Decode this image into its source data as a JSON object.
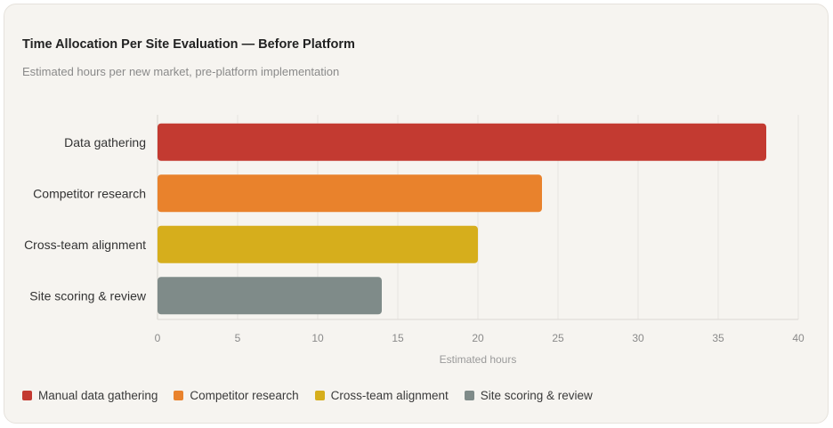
{
  "chart_data": {
    "type": "bar",
    "orientation": "horizontal",
    "title": "Time Allocation Per Site Evaluation — Before Platform",
    "subtitle": "Estimated hours per new market, pre-platform implementation",
    "categories": [
      "Data gathering",
      "Competitor research",
      "Cross-team alignment",
      "Site scoring & review"
    ],
    "values": [
      38,
      24,
      20,
      14
    ],
    "colors": [
      "#c33a31",
      "#e9822c",
      "#d6ae1c",
      "#7f8b89"
    ],
    "xlabel": "Estimated hours",
    "ylabel": "",
    "xlim": [
      0,
      40
    ],
    "xticks": [
      0,
      5,
      10,
      15,
      20,
      25,
      30,
      35,
      40
    ],
    "grid": true,
    "legend": {
      "position": "bottom-left",
      "entries": [
        {
          "label": "Manual data gathering",
          "color": "#c33a31"
        },
        {
          "label": "Competitor research",
          "color": "#e9822c"
        },
        {
          "label": "Cross-team alignment",
          "color": "#d6ae1c"
        },
        {
          "label": "Site scoring & review",
          "color": "#7f8b89"
        }
      ]
    }
  }
}
